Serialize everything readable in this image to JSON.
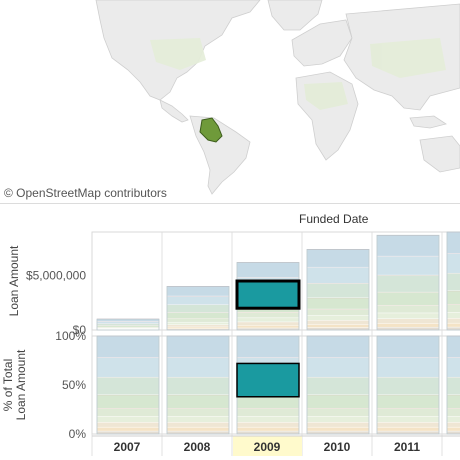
{
  "map": {
    "attribution": "© OpenStreetMap contributors",
    "highlighted_country": "Peru",
    "colors": {
      "water": "#ffffff",
      "land": "#e8e8e8",
      "highlight": "#6f9a3a",
      "border": "#c8c8c8"
    }
  },
  "column_header": "Funded Date",
  "colors": {
    "selected_segment": "#1a9aa0",
    "selected_outline": "#000000",
    "band_blue_top": "#c6dae6",
    "band_blue": "#cfe2ea",
    "band_green": "#d6e7d0",
    "band_light": "#e6efdc",
    "band_peach": "#f4e3c6",
    "band_base": "#e2dcd2",
    "year_highlight": "#fffacc"
  },
  "chart_data": [
    {
      "type": "bar",
      "ylabel": "Loan Amount",
      "categories": [
        "2007",
        "2008",
        "2009",
        "2010",
        "2011"
      ],
      "totals": [
        1000000,
        4000000,
        6200000,
        7400000,
        8700000
      ],
      "selected_segment": {
        "category": "2009",
        "from": 2000000,
        "to": 4500000
      },
      "yticks": [
        {
          "value": 0,
          "label": "$0"
        },
        {
          "value": 5000000,
          "label": "$5,000,000"
        }
      ],
      "ylim": [
        0,
        9000000
      ]
    },
    {
      "type": "bar",
      "ylabel": "% of Total Loan Amount",
      "categories": [
        "2007",
        "2008",
        "2009",
        "2010",
        "2011"
      ],
      "values": [
        100,
        100,
        100,
        100,
        100
      ],
      "selected_segment": {
        "category": "2009",
        "from": 38,
        "to": 72
      },
      "yticks": [
        {
          "value": 0,
          "label": "0%"
        },
        {
          "value": 50,
          "label": "50%"
        },
        {
          "value": 100,
          "label": "100%"
        }
      ],
      "ylim": [
        0,
        100
      ]
    }
  ]
}
